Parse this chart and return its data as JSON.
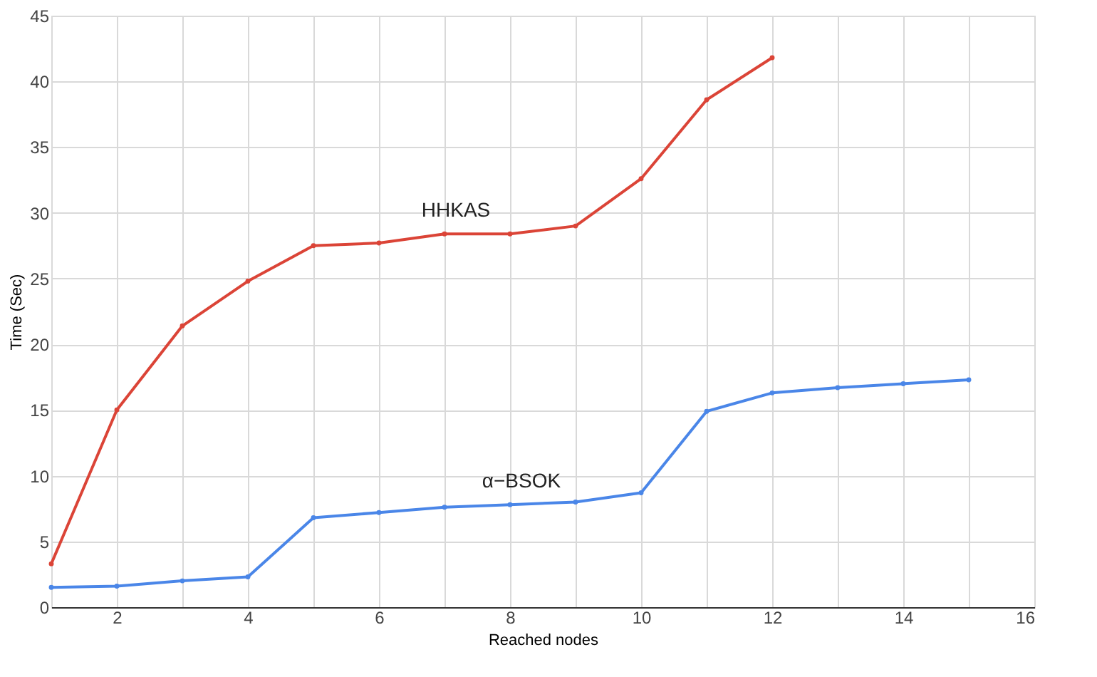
{
  "chart_data": {
    "type": "line",
    "xlabel": "Reached nodes",
    "ylabel": "Time (Sec)",
    "xlim": [
      1,
      16
    ],
    "xticks": [
      {
        "value": 1,
        "label": null
      },
      2,
      {
        "value": 3,
        "label": null
      },
      4,
      {
        "value": 5,
        "label": null
      },
      6,
      {
        "value": 7,
        "label": null
      },
      8,
      {
        "value": 9,
        "label": null
      },
      10,
      {
        "value": 11,
        "label": null
      },
      12,
      {
        "value": 13,
        "label": null
      },
      14,
      {
        "value": 15,
        "label": null
      },
      16
    ],
    "ylim": [
      0,
      45
    ],
    "yticks": [
      0,
      5,
      10,
      15,
      20,
      25,
      30,
      35,
      40,
      45
    ],
    "grid": true,
    "legend": false,
    "marker": "circle",
    "line_style": "solid",
    "series": [
      {
        "name": "HHKAS",
        "color": "#db4437",
        "x": [
          1,
          2,
          3,
          4,
          5,
          6,
          7,
          8,
          9,
          10,
          11,
          12
        ],
        "values": [
          3.3,
          15.0,
          21.4,
          24.8,
          27.5,
          27.7,
          28.4,
          28.4,
          29.0,
          32.6,
          38.6,
          41.8
        ]
      },
      {
        "name": "α−BSOK",
        "color": "#4a86e8",
        "x": [
          1,
          2,
          3,
          4,
          5,
          6,
          7,
          8,
          9,
          10,
          11,
          12,
          13,
          14,
          15
        ],
        "values": [
          1.5,
          1.6,
          2.0,
          2.3,
          6.8,
          7.2,
          7.6,
          7.8,
          8.0,
          8.7,
          14.9,
          16.3,
          16.7,
          17.0,
          17.3
        ]
      }
    ]
  }
}
